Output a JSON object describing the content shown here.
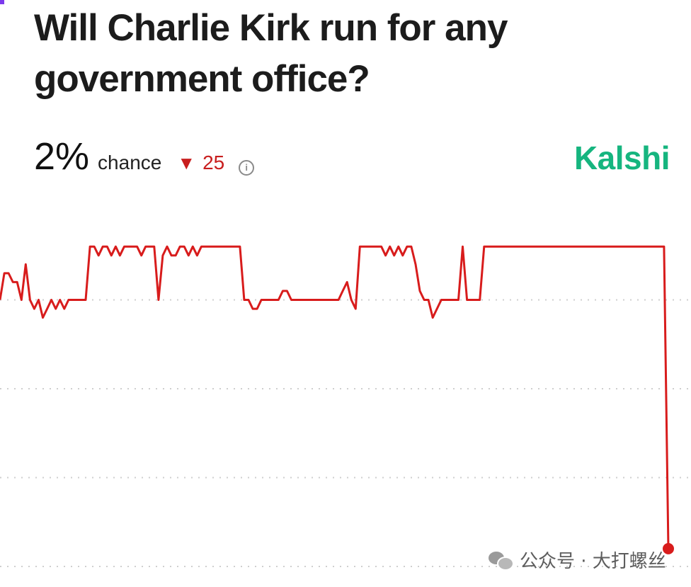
{
  "title": "Will Charlie Kirk run for any government office?",
  "stat": {
    "value": "2%",
    "chance_label": "chance",
    "change_arrow": "▼",
    "change_value": "25",
    "info_icon": "info-icon"
  },
  "brand": "Kalshi",
  "watermark": "公众号 · 大打螺丝",
  "colors": {
    "line": "#d81c1c",
    "brand": "#16b57f",
    "change": "#c81e1e",
    "grid": "#cfcfcf",
    "title": "#1c1c1c"
  },
  "chart_data": {
    "type": "line",
    "title": "Will Charlie Kirk run for any government office?",
    "ylim": [
      0,
      40
    ],
    "gridlines": [
      30,
      20,
      10,
      0
    ],
    "grid": "dotted horizontal",
    "x": [
      0,
      1,
      2,
      3,
      4,
      5,
      6,
      7,
      8,
      9,
      10,
      11,
      12,
      13,
      14,
      15,
      16,
      17,
      18,
      19,
      20,
      21,
      22,
      23,
      24,
      25,
      26,
      27,
      28,
      29,
      30,
      31,
      32,
      33,
      34,
      35,
      36,
      37,
      38,
      39,
      40,
      41,
      42,
      43,
      44,
      45,
      46,
      47,
      48,
      49,
      50,
      51,
      52,
      53,
      54,
      55,
      56,
      57,
      58,
      59,
      60,
      61,
      62,
      63,
      64,
      65,
      66,
      67,
      68,
      69,
      70,
      71,
      72,
      73,
      74,
      75,
      76,
      77,
      78,
      79,
      80,
      81,
      82,
      83,
      84,
      85,
      86,
      87,
      88,
      89,
      90,
      91,
      92,
      93,
      94,
      95,
      96,
      97,
      98,
      99,
      100,
      101,
      102,
      103,
      104,
      105,
      106,
      107,
      108,
      109,
      110,
      111,
      112,
      113,
      114,
      115,
      116,
      117,
      118,
      119,
      120,
      121,
      122,
      123,
      124,
      125,
      126,
      127,
      128,
      129,
      130,
      131,
      132,
      133,
      134,
      135,
      136,
      137,
      138,
      139,
      140,
      141,
      142,
      143,
      144,
      145,
      146,
      147,
      148,
      149,
      150,
      151,
      152,
      153,
      154,
      155,
      156
    ],
    "series": [
      {
        "values": [
          30,
          33,
          33,
          32,
          32,
          30,
          34,
          30,
          29,
          30,
          28,
          29,
          30,
          29,
          30,
          29,
          30,
          30,
          30,
          30,
          30,
          36,
          36,
          35,
          36,
          36,
          35,
          36,
          35,
          36,
          36,
          36,
          36,
          35,
          36,
          36,
          36,
          30,
          35,
          36,
          35,
          35,
          36,
          36,
          35,
          36,
          35,
          36,
          36,
          36,
          36,
          36,
          36,
          36,
          36,
          36,
          36,
          30,
          30,
          29,
          29,
          30,
          30,
          30,
          30,
          30,
          31,
          31,
          30,
          30,
          30,
          30,
          30,
          30,
          30,
          30,
          30,
          30,
          30,
          30,
          31,
          32,
          30,
          29,
          36,
          36,
          36,
          36,
          36,
          36,
          35,
          36,
          35,
          36,
          35,
          36,
          36,
          34,
          31,
          30,
          30,
          28,
          29,
          30,
          30,
          30,
          30,
          30,
          36,
          30,
          30,
          30,
          30,
          36,
          36,
          36,
          36,
          36,
          36,
          36,
          36,
          36,
          36,
          36,
          36,
          36,
          36,
          36,
          36,
          36,
          36,
          36,
          36,
          36,
          36,
          36,
          36,
          36,
          36,
          36,
          36,
          36,
          36,
          36,
          36,
          36,
          36,
          36,
          36,
          36,
          36,
          36,
          36,
          36,
          36,
          36,
          2
        ]
      }
    ],
    "end_marker": 2
  }
}
